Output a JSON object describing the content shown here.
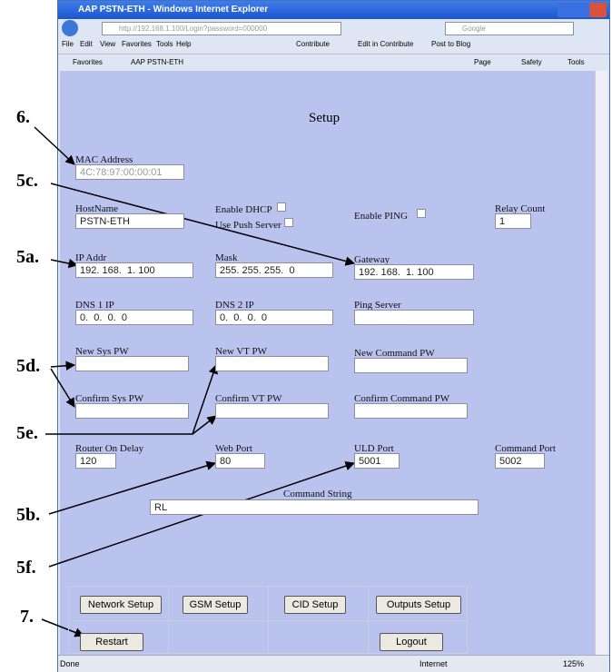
{
  "window": {
    "title": "AAP PSTN-ETH - Windows Internet Explorer",
    "url": "http://192.168.1.100/Login?password=000000",
    "search": "Google",
    "menu": [
      "File",
      "Edit",
      "View",
      "Favorites",
      "Tools",
      "Help"
    ],
    "toolbar": [
      "Contribute",
      "Edit in Contribute",
      "Post to Blog"
    ],
    "favorites": "Favorites",
    "tab": "AAP PSTN-ETH",
    "commands": [
      "Page",
      "Safety",
      "Tools"
    ],
    "status": "Done",
    "zone": "Internet",
    "zoom": "125%"
  },
  "page": {
    "heading": "Setup",
    "fields": [
      {
        "label": "MAC Address",
        "value": "4C:78:97:00:00:01"
      },
      {
        "label": "HostName",
        "value": "PSTN-ETH"
      },
      {
        "label": "Relay Count",
        "value": "1"
      },
      {
        "label": "IP Addr",
        "value": "192. 168.  1. 100"
      },
      {
        "label": "Mask",
        "value": "255. 255. 255.  0"
      },
      {
        "label": "Gateway",
        "value": "192. 168.  1. 100"
      },
      {
        "label": "DNS 1 IP",
        "value": "0.  0.  0.  0"
      },
      {
        "label": "DNS 2 IP",
        "value": "0.  0.  0.  0"
      },
      {
        "label": "Ping Server"
      },
      {
        "label": "New Sys PW"
      },
      {
        "label": "New VT PW"
      },
      {
        "label": "New Command PW"
      },
      {
        "label": "Confirm Sys PW"
      },
      {
        "label": "Confirm VT PW"
      },
      {
        "label": "Confirm Command PW"
      },
      {
        "label": "Router On Delay",
        "value": "120"
      },
      {
        "label": "Web Port",
        "value": "80"
      },
      {
        "label": "ULD Port",
        "value": "5001"
      },
      {
        "label": "Command Port",
        "value": "5002"
      }
    ],
    "checkboxes": [
      "Enable DHCP",
      "Use Push Server",
      "Enable PING"
    ],
    "command_string": {
      "label": "Command String",
      "value": "RL"
    },
    "buttons": [
      "Network Setup",
      "GSM Setup",
      "CID Setup",
      "Outputs Setup",
      "Restart",
      "Logout"
    ]
  },
  "callouts": [
    "6.",
    "5c.",
    "5a.",
    "5d.",
    "5e.",
    "5b.",
    "5f.",
    "7."
  ]
}
